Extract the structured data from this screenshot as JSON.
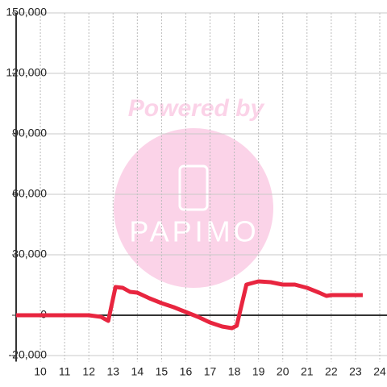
{
  "chart_data": {
    "type": "line",
    "watermark": {
      "line1": "Powered by",
      "line2": "PAPIMO"
    },
    "xlim": [
      9,
      24.3
    ],
    "xticks": [
      10,
      11,
      12,
      13,
      14,
      15,
      16,
      17,
      18,
      19,
      20,
      21,
      22,
      23,
      24
    ],
    "ylim": [
      -23000,
      150000
    ],
    "yticks": [
      {
        "value": -20000,
        "label": "-20,000"
      },
      0,
      {
        "value": 30000,
        "label": "30,000"
      },
      {
        "value": 60000,
        "label": "60,000"
      },
      {
        "value": 90000,
        "label": "90,000"
      },
      {
        "value": 120000,
        "label": "120,000"
      },
      {
        "value": 150000,
        "label": "150,000"
      }
    ],
    "grid": true,
    "series": [
      {
        "color": "#e8253f",
        "x": [
          9,
          12,
          12.5,
          12.8,
          13.1,
          13.4,
          13.7,
          14,
          14.5,
          15,
          15.5,
          16,
          16.5,
          17,
          17.5,
          17.9,
          18.1,
          18.5,
          19,
          19.5,
          20,
          20.5,
          21,
          21.5,
          21.8,
          22,
          23.3
        ],
        "values": [
          0,
          0,
          -800,
          -2800,
          14000,
          13600,
          11600,
          11200,
          8400,
          6000,
          4000,
          1600,
          -800,
          -3600,
          -5600,
          -6400,
          -5200,
          15200,
          16800,
          16400,
          15200,
          15200,
          13600,
          11200,
          9600,
          10000,
          10000
        ]
      }
    ]
  }
}
